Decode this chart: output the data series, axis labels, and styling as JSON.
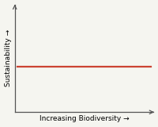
{
  "title": "",
  "xlabel": "Increasing Biodiversity →",
  "ylabel": "Sustainability →",
  "line_y": 0.42,
  "line_color": "#cc4433",
  "line_width": 1.6,
  "xlim": [
    0,
    1
  ],
  "ylim": [
    0,
    1
  ],
  "background_color": "#f5f5f0",
  "xlabel_fontsize": 6.5,
  "ylabel_fontsize": 6.5,
  "spine_color": "#555555",
  "spine_lw": 0.9
}
